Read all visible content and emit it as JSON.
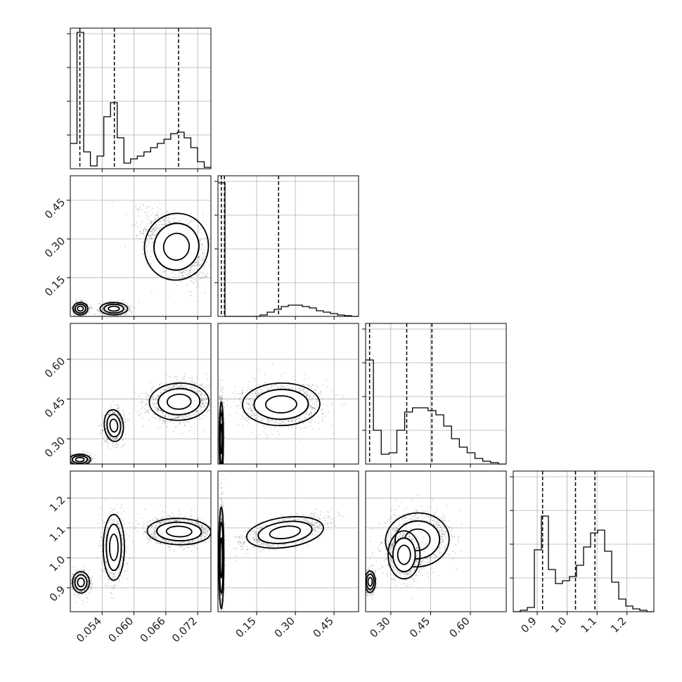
{
  "chart_data": {
    "type": "corner",
    "title": "",
    "parameters": [
      "",
      "",
      "",
      ""
    ],
    "grid": true,
    "axes": [
      {
        "range": [
          0.048,
          0.0745
        ],
        "ticks": [
          0.054,
          0.06,
          0.066,
          0.072
        ],
        "tick_labels": [
          "0.054",
          "0.060",
          "0.066",
          "0.072"
        ],
        "quantiles": [
          0.0498,
          0.0563,
          0.0684
        ]
      },
      {
        "range": [
          0.0,
          0.545
        ],
        "ticks": [
          0.15,
          0.3,
          0.45
        ],
        "tick_labels": [
          "0.15",
          "0.30",
          "0.45"
        ],
        "quantiles": [
          0.013,
          0.025,
          0.235
        ]
      },
      {
        "range": [
          0.205,
          0.735
        ],
        "ticks": [
          0.3,
          0.45,
          0.6
        ],
        "tick_labels": [
          "0.30",
          "0.45",
          "0.60"
        ],
        "quantiles": [
          0.22,
          0.36,
          0.455
        ]
      },
      {
        "range": [
          0.82,
          1.29
        ],
        "ticks": [
          0.9,
          1.0,
          1.1,
          1.2
        ],
        "tick_labels": [
          "0.9",
          "1.0",
          "1.1",
          "1.2"
        ],
        "quantiles": [
          0.918,
          1.028,
          1.093
        ]
      }
    ],
    "histograms": [
      {
        "counts": [
          0.18,
          0.97,
          0.12,
          0.02,
          0.09,
          0.37,
          0.47,
          0.22,
          0.04,
          0.07,
          0.09,
          0.12,
          0.15,
          0.18,
          0.21,
          0.25,
          0.26,
          0.22,
          0.15,
          0.05,
          0.01
        ]
      },
      {
        "counts": [
          0.95,
          0.0,
          0.0,
          0.0,
          0.0,
          0.0,
          0.01,
          0.03,
          0.05,
          0.07,
          0.08,
          0.08,
          0.07,
          0.06,
          0.04,
          0.03,
          0.02,
          0.01,
          0.005,
          0.0
        ]
      },
      {
        "counts": [
          0.74,
          0.24,
          0.07,
          0.08,
          0.24,
          0.37,
          0.4,
          0.4,
          0.38,
          0.35,
          0.27,
          0.18,
          0.12,
          0.08,
          0.04,
          0.02,
          0.01,
          0.0
        ]
      },
      {
        "counts": [
          0.0,
          0.01,
          0.03,
          0.44,
          0.68,
          0.3,
          0.2,
          0.22,
          0.25,
          0.33,
          0.46,
          0.56,
          0.58,
          0.43,
          0.21,
          0.09,
          0.04,
          0.02,
          0.01,
          0.0
        ]
      }
    ],
    "clusters_2d": [
      {
        "x": 0,
        "y": 1,
        "blobs": [
          {
            "cx": 0.068,
            "cy": 0.27,
            "sx": 0.003,
            "sy": 0.065,
            "rho": -0.55,
            "w": 0.5
          },
          {
            "cx": 0.0499,
            "cy": 0.03,
            "sx": 0.0007,
            "sy": 0.012,
            "rho": 0.0,
            "w": 0.25
          },
          {
            "cx": 0.0562,
            "cy": 0.03,
            "sx": 0.0013,
            "sy": 0.012,
            "rho": 0.0,
            "w": 0.25
          }
        ]
      },
      {
        "x": 0,
        "y": 2,
        "blobs": [
          {
            "cx": 0.0685,
            "cy": 0.44,
            "sx": 0.0028,
            "sy": 0.035,
            "rho": 0.1,
            "w": 0.5
          },
          {
            "cx": 0.0562,
            "cy": 0.35,
            "sx": 0.0009,
            "sy": 0.03,
            "rho": 0.1,
            "w": 0.25
          },
          {
            "cx": 0.0498,
            "cy": 0.222,
            "sx": 0.001,
            "sy": 0.01,
            "rho": 0.0,
            "w": 0.25
          }
        ]
      },
      {
        "x": 0,
        "y": 3,
        "blobs": [
          {
            "cx": 0.0685,
            "cy": 1.088,
            "sx": 0.003,
            "sy": 0.022,
            "rho": -0.1,
            "w": 0.5
          },
          {
            "cx": 0.0562,
            "cy": 1.035,
            "sx": 0.001,
            "sy": 0.055,
            "rho": 0.0,
            "w": 0.25
          },
          {
            "cx": 0.05,
            "cy": 0.918,
            "sx": 0.0008,
            "sy": 0.018,
            "rho": 0.0,
            "w": 0.25
          }
        ]
      },
      {
        "x": 1,
        "y": 2,
        "blobs": [
          {
            "cx": 0.245,
            "cy": 0.43,
            "sx": 0.075,
            "sy": 0.04,
            "rho": 0.05,
            "w": 0.5
          },
          {
            "cx": 0.013,
            "cy": 0.3,
            "sx": 0.004,
            "sy": 0.07,
            "rho": 0.0,
            "w": 0.5
          }
        ]
      },
      {
        "x": 1,
        "y": 3,
        "blobs": [
          {
            "cx": 0.26,
            "cy": 1.085,
            "sx": 0.075,
            "sy": 0.025,
            "rho": 0.6,
            "w": 0.5
          },
          {
            "cx": 0.013,
            "cy": 1.0,
            "sx": 0.005,
            "sy": 0.085,
            "rho": 0.0,
            "w": 0.5
          }
        ]
      },
      {
        "x": 2,
        "y": 3,
        "blobs": [
          {
            "cx": 0.4,
            "cy": 1.06,
            "sx": 0.06,
            "sy": 0.045,
            "rho": 0.2,
            "w": 0.5
          },
          {
            "cx": 0.35,
            "cy": 1.01,
            "sx": 0.03,
            "sy": 0.04,
            "rho": 0.0,
            "w": 0.25
          },
          {
            "cx": 0.222,
            "cy": 0.92,
            "sx": 0.01,
            "sy": 0.018,
            "rho": 0.0,
            "w": 0.25
          }
        ]
      }
    ]
  }
}
